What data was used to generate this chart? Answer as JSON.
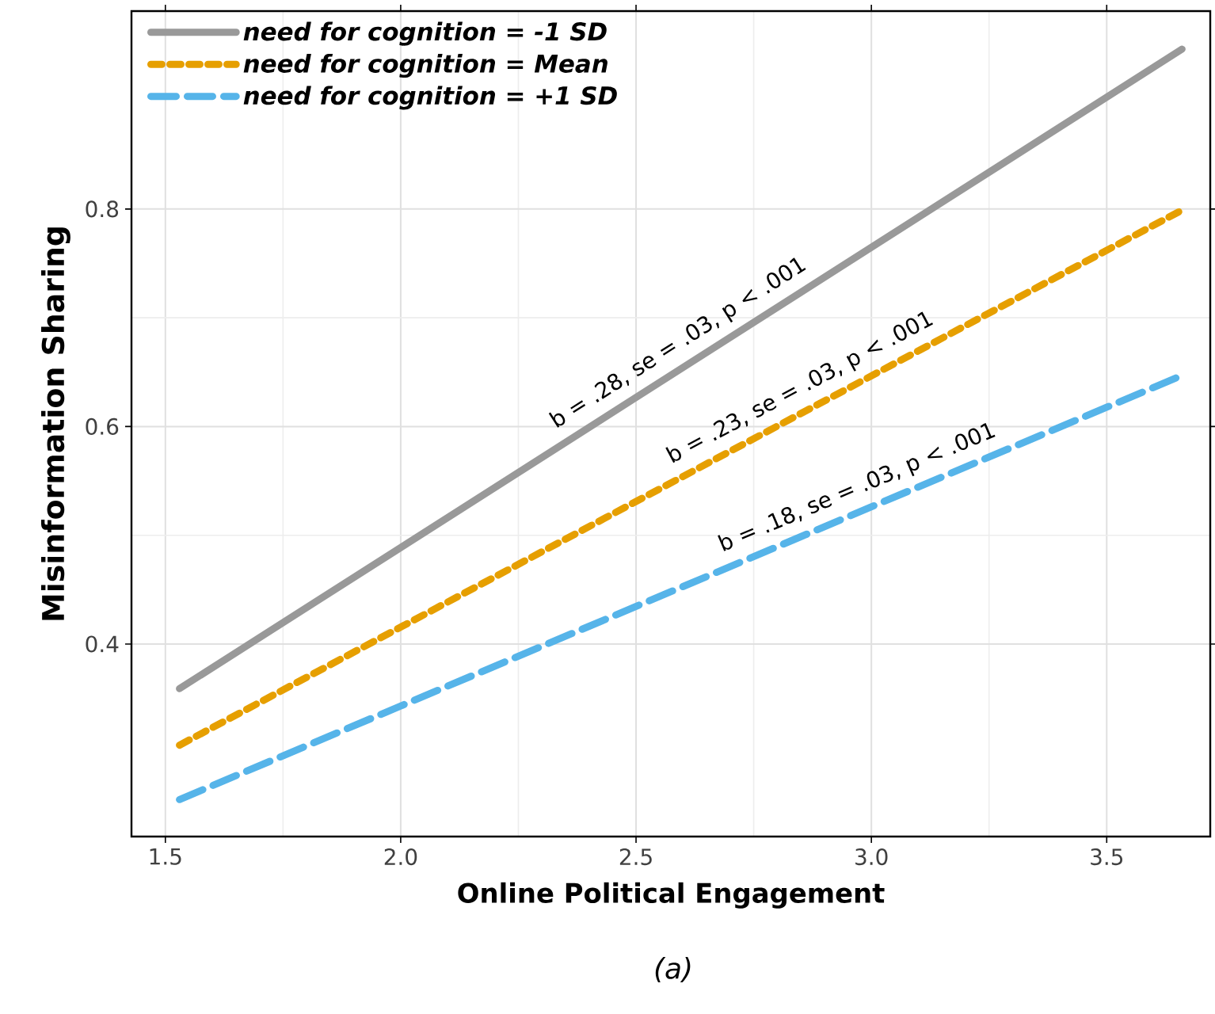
{
  "chart_data": {
    "type": "line",
    "xlabel": "Online Political Engagement",
    "ylabel": "Misinformation Sharing",
    "x": [
      1.53,
      3.66
    ],
    "series": [
      {
        "name": "need for cognition = -1 SD",
        "color": "#999999",
        "line_style": "solid",
        "values": [
          0.359,
          0.947
        ]
      },
      {
        "name": "need for cognition = Mean",
        "color": "#e69f00",
        "line_style": "dotted",
        "values": [
          0.307,
          0.799
        ]
      },
      {
        "name": "need for cognition = +1 SD",
        "color": "#56b4e9",
        "line_style": "dashed",
        "values": [
          0.257,
          0.647
        ]
      }
    ],
    "annotations": [
      "b = .28, se = .03, p < .001",
      "b = .23, se = .03, p < .001",
      "b = .18, se = .03, p < .001",
      "(a)"
    ],
    "xlim": [
      1.428,
      3.72
    ],
    "ylim": [
      0.223,
      0.982
    ],
    "xticks": [
      1.5,
      {
        "value": 2,
        "label": "2.0"
      },
      2.5,
      {
        "value": 3,
        "label": "3.0"
      },
      3.5
    ],
    "yticks": [
      0.4,
      0.6,
      0.8
    ],
    "grid": true,
    "legend": "top left",
    "marker": "none"
  }
}
